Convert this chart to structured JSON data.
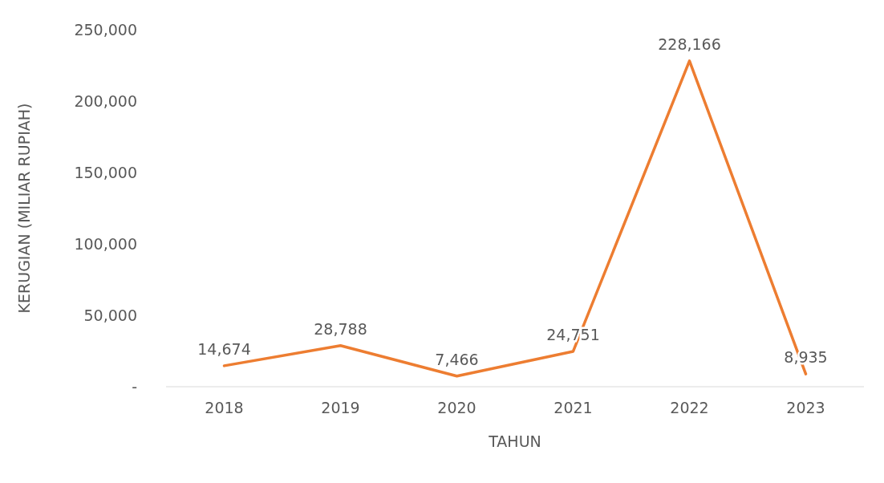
{
  "chart_data": {
    "type": "line",
    "xlabel": "TAHUN",
    "ylabel": "KERUGIAN (MILIAR RUPIAH)",
    "categories": [
      "2018",
      "2019",
      "2020",
      "2021",
      "2022",
      "2023"
    ],
    "series": [
      {
        "color": "#ed7d31",
        "values": [
          14674,
          28788,
          7466,
          24751,
          228166,
          8935
        ],
        "value_labels": [
          "14,674",
          "28,788",
          "7,466",
          "24,751",
          "228,166",
          "8,935"
        ]
      }
    ],
    "ylim": [
      0,
      250000
    ],
    "yticks": [
      {
        "value": 0,
        "label": "-"
      },
      {
        "value": 50000,
        "label": "50,000"
      },
      {
        "value": 100000,
        "label": "100,000"
      },
      {
        "value": 150000,
        "label": "150,000"
      },
      {
        "value": 200000,
        "label": "200,000"
      },
      {
        "value": 250000,
        "label": "250,000"
      }
    ],
    "grid": false,
    "legend": false,
    "marker": "none",
    "line_style": "solid"
  }
}
